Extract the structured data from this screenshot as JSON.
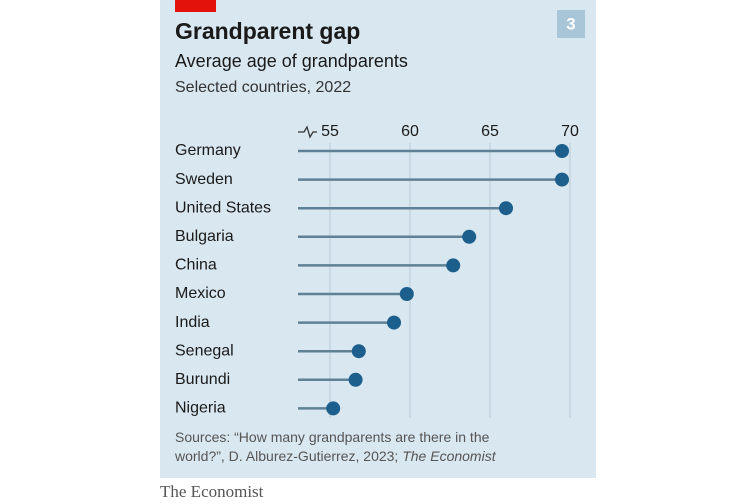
{
  "chart_data": {
    "type": "lollipop",
    "title": "Grandparent gap",
    "subtitle": "Average age of grandparents",
    "subtitle2": "Selected countries, 2022",
    "badge": "3",
    "categories": [
      "Germany",
      "Sweden",
      "United States",
      "Bulgaria",
      "China",
      "Mexico",
      "India",
      "Senegal",
      "Burundi",
      "Nigeria"
    ],
    "values": [
      69.5,
      69.5,
      66.0,
      63.7,
      62.7,
      59.8,
      59.0,
      56.8,
      56.6,
      55.2
    ],
    "color": "#1d5f8c",
    "stem_color": "#5f8195",
    "xlim": [
      53,
      70
    ],
    "xticks": [
      55,
      60,
      65,
      70
    ],
    "grid": true,
    "source": "Sources: “How many grandparents are there in the world?”, D. Alburez-Gutierrez, 2023;",
    "source_publisher": "The Economist",
    "footer": "The Economist"
  }
}
